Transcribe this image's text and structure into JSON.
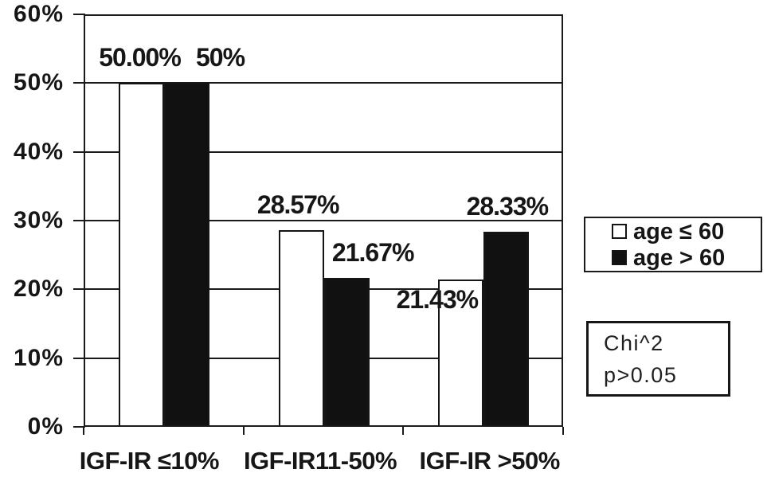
{
  "chart_data": {
    "type": "bar",
    "title": "",
    "xlabel": "",
    "ylabel": "",
    "categories": [
      "IGF-IR ≤10%",
      "IGF-IR11-50%",
      "IGF-IR >50%"
    ],
    "series": [
      {
        "name": "age ≤ 60",
        "fill": "#ffffff",
        "values": [
          50.0,
          28.57,
          21.43
        ],
        "data_labels": [
          "50.00%",
          "28.57%",
          "21.43%"
        ],
        "label_offset": [
          [
            -2,
            0
          ],
          [
            -4,
            0
          ],
          [
            -30,
            57
          ]
        ]
      },
      {
        "name": "age > 60",
        "fill": "#111111",
        "values": [
          50.0,
          21.67,
          28.33
        ],
        "data_labels": [
          "50%",
          "21.67%",
          "28.33%"
        ],
        "label_offset": [
          [
            42,
            0
          ],
          [
            33,
            0
          ],
          [
            1,
            0
          ]
        ]
      }
    ],
    "ylim": [
      0,
      60
    ],
    "yticks": [
      "0%",
      "10%",
      "20%",
      "30%",
      "40%",
      "50%",
      "60%"
    ],
    "grid": true,
    "legend_position": "right-middle",
    "xlabel_dx": [
      -18,
      -4,
      8
    ]
  },
  "legend": {
    "entries": [
      {
        "label": "age ≤ 60",
        "swatch": "#ffffff"
      },
      {
        "label": "age > 60",
        "swatch": "#111111"
      }
    ]
  },
  "stats_box": {
    "line1": "Chi^2",
    "line2": "p>0.05"
  }
}
